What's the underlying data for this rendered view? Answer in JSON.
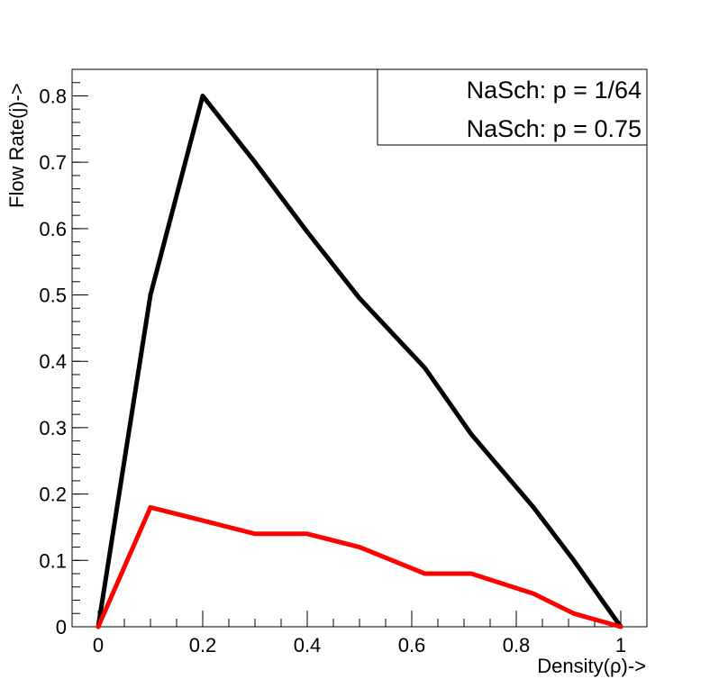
{
  "chart_data": {
    "type": "line",
    "title": "",
    "xlabel": "Density(ρ)->",
    "ylabel": "Flow Rate(j)->",
    "xlim": [
      -0.05,
      1.05
    ],
    "ylim": [
      0,
      0.84
    ],
    "x_ticks": [
      "0",
      "0.2",
      "0.4",
      "0.6",
      "0.8",
      "1"
    ],
    "y_ticks": [
      "0",
      "0.1",
      "0.2",
      "0.3",
      "0.4",
      "0.5",
      "0.6",
      "0.7",
      "0.8"
    ],
    "grid": false,
    "legend_position": "top-right",
    "series": [
      {
        "name": "NaSch: p = 1/64",
        "color": "#000000",
        "x": [
          0,
          0.1,
          0.2,
          0.3,
          0.4,
          0.5,
          0.625,
          0.714,
          0.833,
          0.91,
          1.0
        ],
        "y": [
          0,
          0.5,
          0.8,
          0.7,
          0.595,
          0.495,
          0.39,
          0.29,
          0.18,
          0.1,
          0
        ]
      },
      {
        "name": "NaSch: p = 0.75",
        "color": "#ff0000",
        "x": [
          0,
          0.1,
          0.2,
          0.3,
          0.4,
          0.5,
          0.625,
          0.714,
          0.833,
          0.91,
          1.0
        ],
        "y": [
          0,
          0.18,
          0.16,
          0.14,
          0.14,
          0.12,
          0.08,
          0.08,
          0.05,
          0.02,
          0
        ]
      }
    ]
  }
}
